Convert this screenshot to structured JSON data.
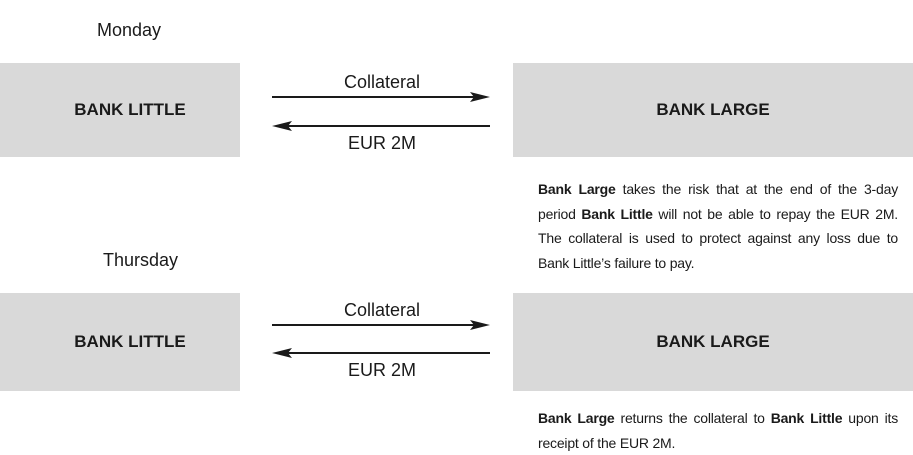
{
  "sections": [
    {
      "day": "Monday",
      "left": "BANK LITTLE",
      "right": "BANK LARGE",
      "arrows": [
        {
          "label": "Collateral"
        },
        {
          "label": "EUR 2M"
        }
      ],
      "note": [
        {
          "text": "Bank Large",
          "bold": true
        },
        {
          "text": " takes the risk that at the end of the 3-day period "
        },
        {
          "text": "Bank Little",
          "bold": true
        },
        {
          "text": " will not be able to repay the EUR 2M. The collateral is used to protect against any loss due to Bank Little’s failure to pay."
        }
      ]
    },
    {
      "day": "Thursday",
      "left": "BANK LITTLE",
      "right": "BANK LARGE",
      "arrows": [
        {
          "label": "Collateral"
        },
        {
          "label": "EUR 2M"
        }
      ],
      "note": [
        {
          "text": "Bank Large",
          "bold": true
        },
        {
          "text": " returns the collateral to "
        },
        {
          "text": "Bank Little",
          "bold": true
        },
        {
          "text": " upon its receipt of the EUR 2M."
        }
      ]
    }
  ]
}
